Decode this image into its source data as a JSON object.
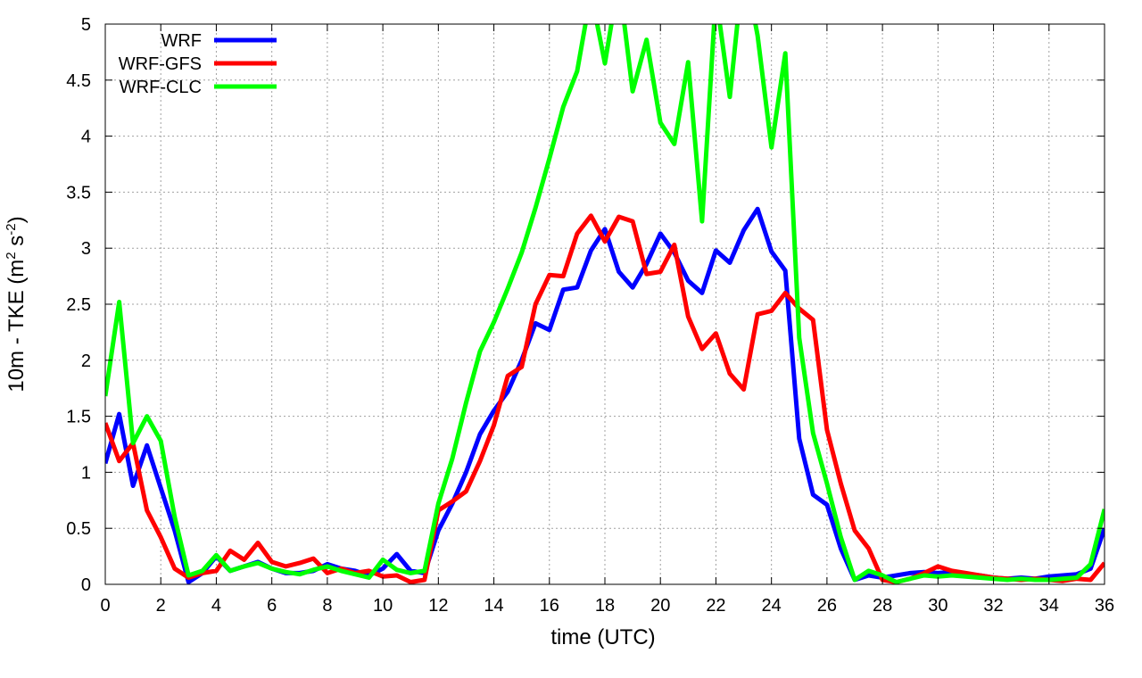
{
  "chart_data": {
    "type": "line",
    "title": "",
    "xlabel": "time (UTC)",
    "ylabel_main": "10m - TKE (m",
    "ylabel_sup1": "2",
    "ylabel_mid": " s",
    "ylabel_sup2": "-2",
    "ylabel_end": ")",
    "xlim": [
      0,
      36
    ],
    "ylim": [
      0,
      5
    ],
    "xticks": [
      0,
      2,
      4,
      6,
      8,
      10,
      12,
      14,
      16,
      18,
      20,
      22,
      24,
      26,
      28,
      30,
      32,
      34,
      36
    ],
    "yticks": [
      0,
      0.5,
      1,
      1.5,
      2,
      2.5,
      3,
      3.5,
      4,
      4.5,
      5
    ],
    "ytick_labels": [
      "0",
      "0.5",
      "1",
      "1.5",
      "2",
      "2.5",
      "3",
      "3.5",
      "4",
      "4.5",
      "5"
    ],
    "grid": true,
    "legend_position": "top-left",
    "x": [
      0,
      0.5,
      1,
      1.5,
      2,
      2.5,
      3,
      3.5,
      4,
      4.5,
      5,
      5.5,
      6,
      6.5,
      7,
      7.5,
      8,
      8.5,
      9,
      9.5,
      10,
      10.5,
      11,
      11.5,
      12,
      12.5,
      13,
      13.5,
      14,
      14.5,
      15,
      15.5,
      16,
      16.5,
      17,
      17.5,
      18,
      18.5,
      19,
      19.5,
      20,
      20.5,
      21,
      21.5,
      22,
      22.5,
      23,
      23.5,
      24,
      24.5,
      25,
      25.5,
      26,
      26.5,
      27,
      27.5,
      28,
      28.5,
      29,
      29.5,
      30,
      30.5,
      31,
      31.5,
      32,
      32.5,
      33,
      33.5,
      34,
      34.5,
      35,
      35.5,
      36
    ],
    "series": [
      {
        "name": "WRF",
        "color": "#0000ff",
        "values": [
          1.08,
          1.52,
          0.88,
          1.24,
          0.86,
          0.48,
          0.02,
          0.1,
          0.25,
          0.12,
          0.16,
          0.2,
          0.14,
          0.1,
          0.1,
          0.12,
          0.18,
          0.14,
          0.12,
          0.08,
          0.14,
          0.27,
          0.12,
          0.1,
          0.48,
          0.72,
          1.0,
          1.34,
          1.55,
          1.72,
          2.0,
          2.33,
          2.27,
          2.63,
          2.65,
          2.98,
          3.17,
          2.79,
          2.65,
          2.86,
          3.13,
          2.96,
          2.71,
          2.6,
          2.98,
          2.87,
          3.16,
          3.35,
          2.97,
          2.8,
          1.3,
          0.8,
          0.71,
          0.32,
          0.04,
          0.08,
          0.06,
          0.08,
          0.1,
          0.11,
          0.1,
          0.11,
          0.09,
          0.08,
          0.06,
          0.05,
          0.06,
          0.05,
          0.07,
          0.08,
          0.09,
          0.14,
          0.5
        ]
      },
      {
        "name": "WRF-GFS",
        "color": "#ff0000",
        "values": [
          1.44,
          1.1,
          1.26,
          0.66,
          0.42,
          0.14,
          0.06,
          0.1,
          0.12,
          0.3,
          0.22,
          0.37,
          0.2,
          0.16,
          0.19,
          0.23,
          0.1,
          0.14,
          0.1,
          0.12,
          0.07,
          0.08,
          0.02,
          0.04,
          0.66,
          0.74,
          0.83,
          1.1,
          1.42,
          1.86,
          1.94,
          2.5,
          2.76,
          2.75,
          3.13,
          3.29,
          3.06,
          3.28,
          3.24,
          2.77,
          2.79,
          3.03,
          2.39,
          2.1,
          2.24,
          1.88,
          1.74,
          2.41,
          2.44,
          2.6,
          2.46,
          2.36,
          1.38,
          0.9,
          0.48,
          0.32,
          0.04,
          0.02,
          0.05,
          0.1,
          0.16,
          0.12,
          0.1,
          0.08,
          0.06,
          0.05,
          0.04,
          0.05,
          0.04,
          0.03,
          0.05,
          0.04,
          0.19
        ]
      },
      {
        "name": "WRF-CLC",
        "color": "#00ff00",
        "values": [
          1.68,
          2.52,
          1.26,
          1.5,
          1.28,
          0.6,
          0.08,
          0.12,
          0.26,
          0.12,
          0.16,
          0.19,
          0.14,
          0.11,
          0.09,
          0.13,
          0.16,
          0.12,
          0.09,
          0.06,
          0.22,
          0.13,
          0.1,
          0.12,
          0.72,
          1.12,
          1.62,
          2.08,
          2.34,
          2.64,
          2.96,
          3.36,
          3.8,
          4.26,
          4.58,
          5.28,
          4.65,
          5.4,
          4.4,
          4.86,
          4.12,
          3.93,
          4.66,
          3.24,
          5.26,
          4.35,
          5.55,
          4.9,
          3.9,
          4.74,
          2.2,
          1.35,
          0.9,
          0.42,
          0.04,
          0.12,
          0.08,
          0.02,
          0.05,
          0.08,
          0.07,
          0.08,
          0.07,
          0.06,
          0.05,
          0.04,
          0.05,
          0.04,
          0.04,
          0.05,
          0.06,
          0.18,
          0.67
        ]
      }
    ]
  }
}
